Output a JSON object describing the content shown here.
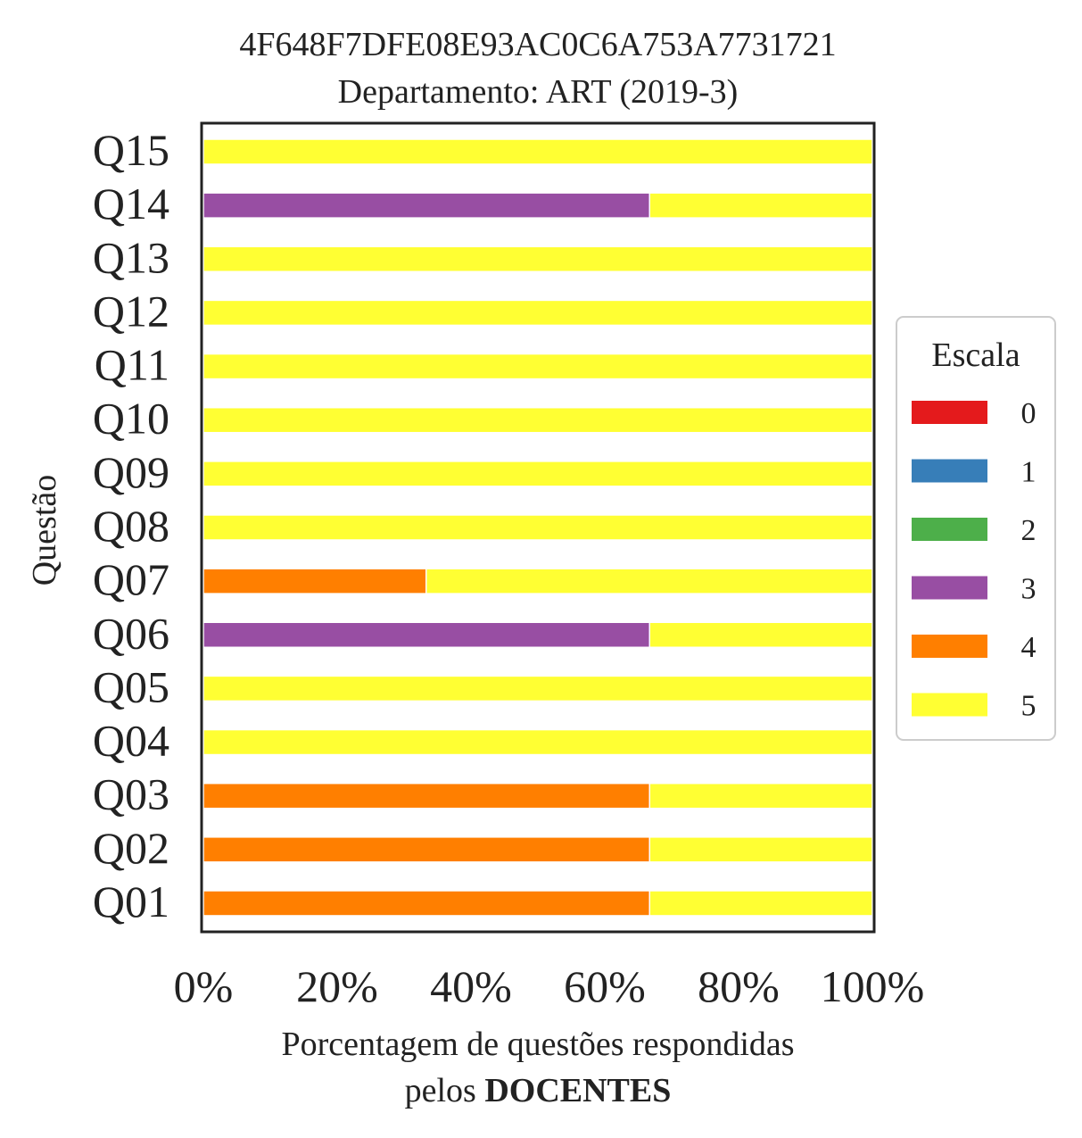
{
  "chart_data": {
    "type": "bar",
    "orientation": "horizontal",
    "stacked": true,
    "title": "4F648F7DFE08E93AC0C6A753A7731721",
    "subtitle": "Departamento: ART (2019-3)",
    "ylabel": "Questão",
    "xlabel_line1": "Porcentagem de questões respondidas",
    "xlabel_line2_prefix": "pelos",
    "xlabel_line2_bold": "DOCENTES",
    "xlim": [
      0,
      100
    ],
    "x_ticks": [
      0,
      20,
      40,
      60,
      80,
      100
    ],
    "x_tick_labels": [
      "0%",
      "20%",
      "40%",
      "60%",
      "80%",
      "100%"
    ],
    "grid": false,
    "legend_position": "right",
    "legend_title": "Escala",
    "categories": [
      "Q01",
      "Q02",
      "Q03",
      "Q04",
      "Q05",
      "Q06",
      "Q07",
      "Q08",
      "Q09",
      "Q10",
      "Q11",
      "Q12",
      "Q13",
      "Q14",
      "Q15"
    ],
    "series": [
      {
        "name": "0",
        "color": "#e41a1c",
        "values": [
          0,
          0,
          0,
          0,
          0,
          0,
          0,
          0,
          0,
          0,
          0,
          0,
          0,
          0,
          0
        ]
      },
      {
        "name": "1",
        "color": "#377eb8",
        "values": [
          0,
          0,
          0,
          0,
          0,
          0,
          0,
          0,
          0,
          0,
          0,
          0,
          0,
          0,
          0
        ]
      },
      {
        "name": "2",
        "color": "#4daf4a",
        "values": [
          0,
          0,
          0,
          0,
          0,
          0,
          0,
          0,
          0,
          0,
          0,
          0,
          0,
          0,
          0
        ]
      },
      {
        "name": "3",
        "color": "#984ea3",
        "values": [
          0,
          0,
          0,
          0,
          0,
          66.7,
          0,
          0,
          0,
          0,
          0,
          0,
          0,
          66.7,
          0
        ]
      },
      {
        "name": "4",
        "color": "#ff7f00",
        "values": [
          66.7,
          66.7,
          66.7,
          0,
          0,
          0,
          33.3,
          0,
          0,
          0,
          0,
          0,
          0,
          0,
          0
        ]
      },
      {
        "name": "5",
        "color": "#ffff33",
        "values": [
          33.3,
          33.3,
          33.3,
          100,
          100,
          33.3,
          66.7,
          100,
          100,
          100,
          100,
          100,
          100,
          33.3,
          100
        ]
      }
    ]
  }
}
